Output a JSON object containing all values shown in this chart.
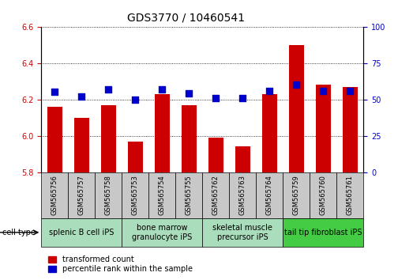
{
  "title": "GDS3770 / 10460541",
  "samples": [
    "GSM565756",
    "GSM565757",
    "GSM565758",
    "GSM565753",
    "GSM565754",
    "GSM565755",
    "GSM565762",
    "GSM565763",
    "GSM565764",
    "GSM565759",
    "GSM565760",
    "GSM565761"
  ],
  "transformed_count": [
    6.16,
    6.1,
    6.17,
    5.97,
    6.23,
    6.17,
    5.99,
    5.94,
    6.23,
    6.5,
    6.28,
    6.27
  ],
  "percentile_rank": [
    55,
    52,
    57,
    50,
    57,
    54,
    51,
    51,
    56,
    60,
    56,
    56
  ],
  "cell_types": [
    {
      "label": "splenic B cell iPS",
      "start": 0,
      "end": 3,
      "color": "#bbeecc"
    },
    {
      "label": "bone marrow\ngranulocyte iPS",
      "start": 3,
      "end": 6,
      "color": "#bbeecc"
    },
    {
      "label": "skeletal muscle\nprecursor iPS",
      "start": 6,
      "end": 9,
      "color": "#bbeecc"
    },
    {
      "label": "tail tip fibroblast iPS",
      "start": 9,
      "end": 12,
      "color": "#44dd44"
    }
  ],
  "ylim_left": [
    5.8,
    6.6
  ],
  "ylim_right": [
    0,
    100
  ],
  "yticks_left": [
    5.8,
    6.0,
    6.2,
    6.4,
    6.6
  ],
  "yticks_right": [
    0,
    25,
    50,
    75,
    100
  ],
  "bar_color": "#cc0000",
  "dot_color": "#0000cc",
  "bar_width": 0.55,
  "dot_size": 40,
  "bar_color_str": "#cc0000",
  "dot_color_str": "#0000cc",
  "grid_color": "#000000",
  "background_xtick": "#c8c8c8",
  "tick_label_fontsize": 7,
  "sample_fontsize": 6,
  "cell_type_fontsize": 7,
  "title_fontsize": 10
}
